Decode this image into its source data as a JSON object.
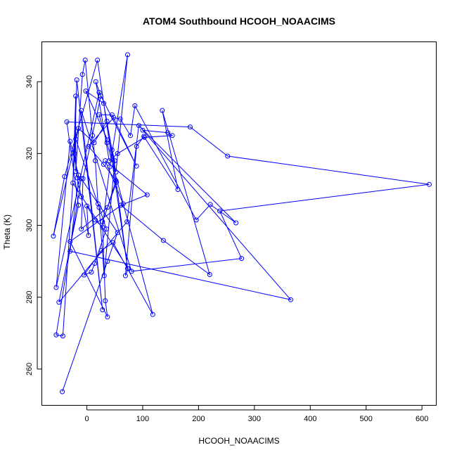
{
  "chart_data": {
    "type": "line",
    "title": "ATOM4 Southbound HCOOH_NOAACIMS",
    "xlabel": "HCOOH_NOAACIMS",
    "ylabel": "Theta (K)",
    "xlim": [
      -80,
      625
    ],
    "ylim": [
      250,
      351
    ],
    "xticks": [
      0,
      100,
      200,
      300,
      400,
      500,
      600
    ],
    "yticks": [
      260,
      280,
      300,
      320,
      340
    ],
    "grid": false,
    "legend": "none",
    "color": "#0000ff",
    "series": [
      {
        "points": [
          [
            -44,
            253.7
          ],
          [
            37,
            290
          ],
          [
            55,
            298
          ],
          [
            -10,
            313
          ],
          [
            -55,
            269.5
          ],
          [
            -43,
            269.2
          ],
          [
            -20,
            324
          ],
          [
            22,
            305
          ],
          [
            31,
            286
          ],
          [
            50,
            318
          ],
          [
            45,
            321
          ],
          [
            73,
            288
          ],
          [
            19,
            346
          ],
          [
            -40,
            313.6
          ],
          [
            -60,
            297
          ],
          [
            -15,
            327
          ],
          [
            13,
            323
          ],
          [
            36,
            329
          ],
          [
            53,
            312
          ],
          [
            28,
            301
          ],
          [
            33,
            279
          ],
          [
            37,
            274.5
          ],
          [
            -30,
            295.5
          ],
          [
            65,
            306
          ],
          [
            33,
            318
          ],
          [
            108,
            308.5
          ],
          [
            61,
            305.6
          ],
          [
            137,
            295.8
          ],
          [
            220,
            286.3
          ],
          [
            135,
            332
          ],
          [
            163,
            310
          ],
          [
            102,
            324.8
          ],
          [
            89,
            322
          ],
          [
            69,
            286
          ],
          [
            74,
            288
          ],
          [
            -25,
            311.8
          ],
          [
            -20,
            336
          ],
          [
            -20,
            315
          ],
          [
            -8,
            342
          ],
          [
            -3,
            346
          ],
          [
            10,
            325
          ],
          [
            15,
            318
          ],
          [
            20,
            306
          ],
          [
            35,
            299
          ],
          [
            14,
            289.4
          ],
          [
            8,
            287
          ],
          [
            -5,
            286.2
          ],
          [
            26,
            293
          ],
          [
            47,
            295.2
          ],
          [
            118,
            275.2
          ],
          [
            36,
            323
          ],
          [
            22,
            330.8
          ],
          [
            45,
            330.8
          ],
          [
            89,
            316.5
          ],
          [
            22,
            337
          ],
          [
            -55,
            282.7
          ],
          [
            -30,
            323.4
          ],
          [
            -15,
            314
          ],
          [
            -30,
            292.8
          ],
          [
            365,
            279.3
          ],
          [
            100,
            326.5
          ],
          [
            145,
            325.8
          ],
          [
            153,
            325
          ],
          [
            103,
            324.5
          ],
          [
            55,
            320
          ],
          [
            40,
            318
          ],
          [
            16,
            340
          ],
          [
            25,
            336
          ],
          [
            -7,
            313
          ],
          [
            -10,
            299
          ],
          [
            37,
            305
          ],
          [
            52,
            312.5
          ],
          [
            30,
            317
          ],
          [
            3,
            322
          ],
          [
            48,
            330
          ],
          [
            60,
            329.6
          ],
          [
            78,
            325
          ],
          [
            86,
            333.3
          ],
          [
            196,
            301.5
          ],
          [
            221,
            305.8
          ],
          [
            267,
            300.7
          ],
          [
            93,
            327.8
          ],
          [
            72,
            301
          ],
          [
            -50,
            278.6
          ],
          [
            -15,
            305.6
          ],
          [
            -36,
            328.8
          ],
          [
            185,
            327.4
          ],
          [
            252,
            319.3
          ],
          [
            613,
            311.4
          ],
          [
            238,
            304
          ],
          [
            277,
            290.8
          ],
          [
            80,
            287.2
          ],
          [
            -10,
            332
          ],
          [
            28,
            276.5
          ],
          [
            -18,
            340.5
          ],
          [
            -22,
            320
          ],
          [
            -17,
            313.2
          ],
          [
            -10,
            308
          ],
          [
            3,
            297.2
          ],
          [
            0,
            305.4
          ],
          [
            15,
            301.5
          ],
          [
            28,
            299.5
          ],
          [
            41,
            316.3
          ],
          [
            73,
            347.5
          ],
          [
            52,
            314.8
          ],
          [
            30,
            334
          ],
          [
            -2,
            337.4
          ],
          [
            37,
            323.8
          ]
        ]
      }
    ]
  }
}
